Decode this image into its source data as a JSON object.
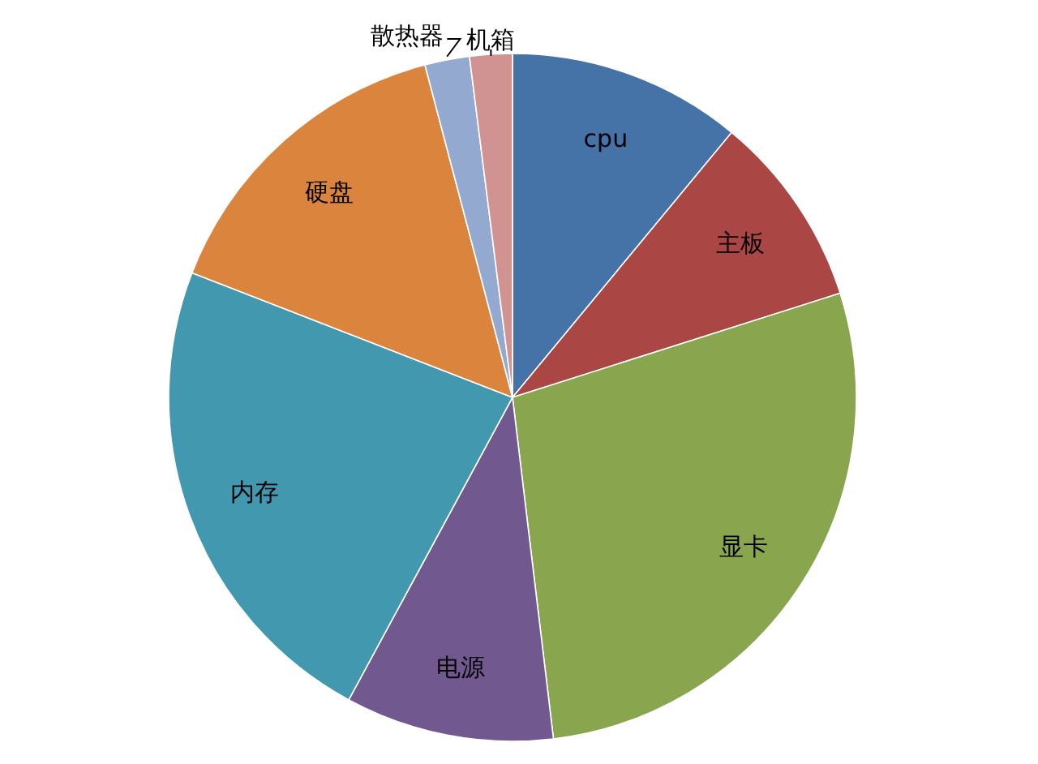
{
  "chart_data": {
    "type": "pie",
    "categories": [
      "cpu",
      "主板",
      "显卡",
      "电源",
      "内存",
      "硬盘",
      "散热器",
      "机箱"
    ],
    "values": [
      11.0,
      9.1,
      28.0,
      9.8,
      23.0,
      15.0,
      2.1,
      2.0
    ],
    "colors": [
      "#4572a7",
      "#aa4643",
      "#89a54e",
      "#71588f",
      "#4198af",
      "#db843d",
      "#93a9cf",
      "#d19392"
    ],
    "legend": false
  }
}
